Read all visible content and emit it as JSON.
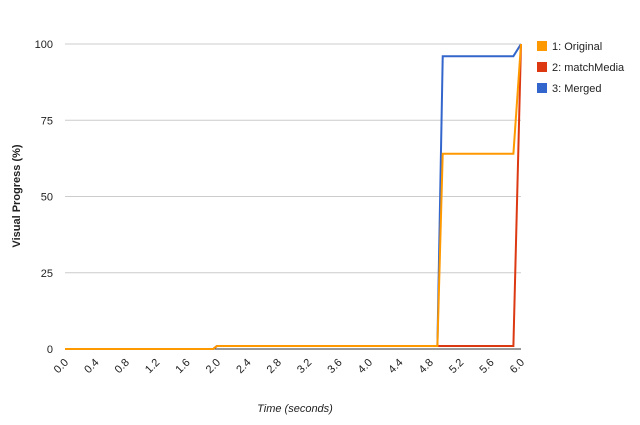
{
  "chart_data": {
    "type": "line",
    "x_label": "Time (seconds)",
    "y_label": "Visual Progress (%)",
    "x": [
      0,
      1.95,
      2.0,
      4.9,
      4.97,
      5.9,
      6.0
    ],
    "series": [
      {
        "name": "1: Original",
        "color": "#ff9900",
        "values": [
          0,
          0,
          1,
          1,
          64,
          64,
          100
        ]
      },
      {
        "name": "2: matchMedia",
        "color": "#dc3912",
        "values": [
          0,
          0,
          1,
          1,
          1,
          1,
          100
        ]
      },
      {
        "name": "3: Merged",
        "color": "#3366cc",
        "values": [
          0,
          0,
          1,
          1,
          96,
          96,
          100
        ]
      }
    ],
    "xlim": [
      0,
      6
    ],
    "ylim": [
      0,
      100
    ],
    "xticks": [
      {
        "value": 0,
        "label": "0.0"
      },
      0.4,
      0.8,
      1.2,
      1.6,
      {
        "value": 2,
        "label": "2.0"
      },
      2.4,
      2.8,
      3.2,
      3.6,
      {
        "value": 4,
        "label": "4.0"
      },
      4.4,
      4.8,
      5.2,
      5.6,
      {
        "value": 6,
        "label": "6.0"
      }
    ],
    "yticks": [
      0,
      25,
      50,
      75,
      100
    ],
    "grid": true,
    "legend": "right"
  }
}
